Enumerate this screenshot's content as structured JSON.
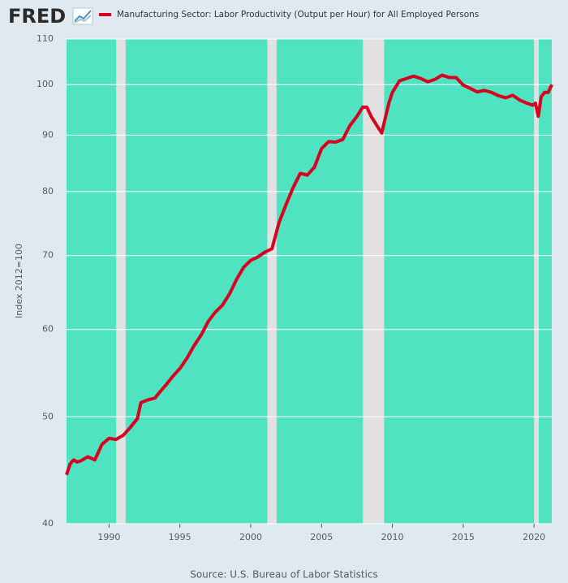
{
  "chart_data": {
    "type": "line",
    "logo": "FRED",
    "y_label": "Index 2012=100",
    "source": "Source: U.S. Bureau of Labor Statistics",
    "log_scale": true,
    "grid": true,
    "background": "#4fe3c1",
    "recession_color": "#e1e1e1",
    "xlim": [
      1987,
      2021.25
    ],
    "xticks": [
      1990,
      1995,
      2000,
      2005,
      2010,
      2015,
      2020
    ],
    "ylim": [
      40,
      110
    ],
    "yticks": [
      40,
      50,
      60,
      70,
      80,
      90,
      100,
      110
    ],
    "recessions": [
      [
        1990.5,
        1991.17
      ],
      [
        2001.17,
        2001.83
      ],
      [
        2007.92,
        2009.42
      ],
      [
        2020.0,
        2020.33
      ]
    ],
    "x": [
      1987.0,
      1987.25,
      1987.5,
      1987.75,
      1988.0,
      1988.5,
      1989.0,
      1989.5,
      1990.0,
      1990.5,
      1991.0,
      1991.5,
      1992.0,
      1992.25,
      1992.75,
      1993.25,
      1993.5,
      1994.0,
      1994.5,
      1995.0,
      1995.5,
      1996.0,
      1996.5,
      1997.0,
      1997.5,
      1998.0,
      1998.5,
      1999.0,
      1999.5,
      2000.0,
      2000.5,
      2001.0,
      2001.5,
      2002.0,
      2002.5,
      2003.0,
      2003.5,
      2004.0,
      2004.5,
      2005.0,
      2005.5,
      2006.0,
      2006.5,
      2007.0,
      2007.5,
      2007.9,
      2008.2,
      2008.5,
      2009.0,
      2009.25,
      2009.5,
      2009.75,
      2010.0,
      2010.5,
      2011.0,
      2011.5,
      2012.0,
      2012.5,
      2013.0,
      2013.5,
      2014.0,
      2014.5,
      2015.0,
      2015.5,
      2016.0,
      2016.5,
      2017.0,
      2017.5,
      2018.0,
      2018.5,
      2019.0,
      2019.5,
      2019.9,
      2020.1,
      2020.3,
      2020.5,
      2020.75,
      2021.0,
      2021.25
    ],
    "series": [
      {
        "name": "Manufacturing Sector: Labor Productivity (Output per Hour) for All Employed Persons",
        "color": "#d7001f",
        "values": [
          44.3,
          45.3,
          45.7,
          45.5,
          45.6,
          46.0,
          45.7,
          47.2,
          47.8,
          47.7,
          48.1,
          48.9,
          49.8,
          51.5,
          51.8,
          52.0,
          52.5,
          53.4,
          54.4,
          55.3,
          56.5,
          58.0,
          59.3,
          61.0,
          62.2,
          63.1,
          64.6,
          66.6,
          68.3,
          69.3,
          69.8,
          70.5,
          71.0,
          75.0,
          77.9,
          80.7,
          83.1,
          82.8,
          84.2,
          87.5,
          88.8,
          88.7,
          89.2,
          91.8,
          93.6,
          95.4,
          95.4,
          93.6,
          91.4,
          90.4,
          93.3,
          96.2,
          98.4,
          100.8,
          101.3,
          101.8,
          101.3,
          100.6,
          101.1,
          102.0,
          101.5,
          101.5,
          99.9,
          99.2,
          98.5,
          98.8,
          98.4,
          97.7,
          97.3,
          97.8,
          96.8,
          96.2,
          95.8,
          96.2,
          93.6,
          97.5,
          98.4,
          98.4,
          100.0
        ]
      }
    ]
  }
}
